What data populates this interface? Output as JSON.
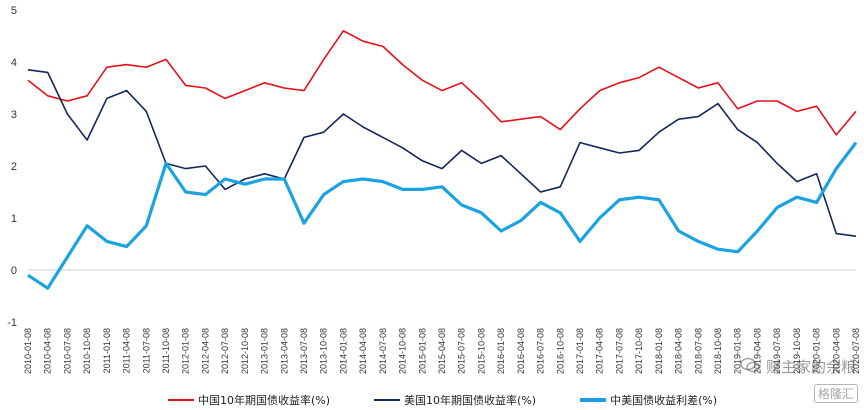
{
  "chart_data": {
    "type": "line",
    "title": "",
    "xlabel": "",
    "ylabel": "",
    "ylim": [
      -1,
      5
    ],
    "yticks": [
      "5",
      "4",
      "3",
      "2",
      "1",
      "0",
      "-1"
    ],
    "grid": false,
    "legend_position": "bottom",
    "x": [
      "2010-01-08",
      "2010-04-08",
      "2010-07-08",
      "2010-10-08",
      "2011-01-08",
      "2011-04-08",
      "2011-07-08",
      "2011-10-08",
      "2012-01-08",
      "2012-04-08",
      "2012-07-08",
      "2012-10-08",
      "2013-01-08",
      "2013-04-08",
      "2013-07-08",
      "2013-10-08",
      "2014-01-08",
      "2014-04-08",
      "2014-07-08",
      "2014-10-08",
      "2015-01-08",
      "2015-04-08",
      "2015-07-08",
      "2015-10-08",
      "2016-01-08",
      "2016-04-08",
      "2016-07-08",
      "2016-10-08",
      "2017-01-08",
      "2017-04-08",
      "2017-07-08",
      "2017-10-08",
      "2018-01-08",
      "2018-04-08",
      "2018-07-08",
      "2018-10-08",
      "2019-01-08",
      "2019-04-08",
      "2019-07-08",
      "2019-10-08",
      "2020-01-08",
      "2020-04-08",
      "2020-07-08"
    ],
    "series": [
      {
        "name": "中国10年期国债收益率(%)",
        "color": "#e8101a",
        "values": [
          3.65,
          3.35,
          3.25,
          3.35,
          3.9,
          3.95,
          3.9,
          4.05,
          3.55,
          3.5,
          3.3,
          3.45,
          3.6,
          3.5,
          3.45,
          4.05,
          4.6,
          4.4,
          4.3,
          3.95,
          3.65,
          3.45,
          3.6,
          3.25,
          2.85,
          2.9,
          2.95,
          2.7,
          3.1,
          3.45,
          3.6,
          3.7,
          3.9,
          3.7,
          3.5,
          3.6,
          3.1,
          3.25,
          3.25,
          3.05,
          3.15,
          2.6,
          3.05
        ]
      },
      {
        "name": "美国10年期国债收益率(%)",
        "color": "#14285a",
        "values": [
          3.85,
          3.8,
          3.0,
          2.5,
          3.3,
          3.45,
          3.05,
          2.05,
          1.95,
          2.0,
          1.55,
          1.75,
          1.85,
          1.75,
          2.55,
          2.65,
          3.0,
          2.75,
          2.55,
          2.35,
          2.1,
          1.95,
          2.3,
          2.05,
          2.2,
          1.85,
          1.5,
          1.6,
          2.45,
          2.35,
          2.25,
          2.3,
          2.65,
          2.9,
          2.95,
          3.2,
          2.7,
          2.45,
          2.05,
          1.7,
          1.85,
          0.7,
          0.65
        ]
      },
      {
        "name": "中美国债收益利差(%)",
        "color": "#1aa3e0",
        "values": [
          -0.1,
          -0.35,
          0.25,
          0.85,
          0.55,
          0.45,
          0.85,
          2.05,
          1.5,
          1.45,
          1.75,
          1.65,
          1.75,
          1.75,
          0.9,
          1.45,
          1.7,
          1.75,
          1.7,
          1.55,
          1.55,
          1.6,
          1.25,
          1.1,
          0.75,
          0.95,
          1.3,
          1.1,
          0.55,
          1.0,
          1.35,
          1.4,
          1.35,
          0.75,
          0.55,
          0.4,
          0.35,
          0.75,
          1.2,
          1.4,
          1.3,
          1.95,
          2.45
        ]
      }
    ]
  },
  "watermark": {
    "account": "财主家的余粮",
    "badge": "格隆汇"
  }
}
